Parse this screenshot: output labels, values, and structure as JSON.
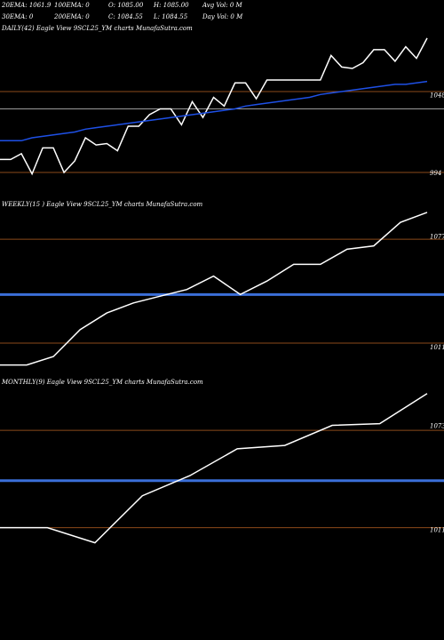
{
  "header": {
    "ema20": "20EMA: 1061.9",
    "ema100": "100EMA: 0",
    "open": "O: 1085.00",
    "high": "H: 1085.00",
    "avg_vol": "Avg Vol: 0  M",
    "ema30": "30EMA: 0",
    "ema200": "200EMA: 0",
    "close": "C: 1084.55",
    "low": "L: 1084.55",
    "day_vol": "Day Vol: 0  M"
  },
  "chart_data": [
    {
      "id": "daily",
      "type": "line",
      "title": "DAILY(42) Eagle  View  9SCL25_YM charts MunafaSutra.com",
      "ylim": [
        978,
        1090
      ],
      "ytick_labels": [
        {
          "value": 1048,
          "label": "1048"
        },
        {
          "value": 994,
          "label": "994"
        }
      ],
      "hlines": [
        {
          "y": 1050,
          "color": "#8b4a1a"
        },
        {
          "y": 1038,
          "color": "#9a9a9a"
        },
        {
          "y": 994,
          "color": "#8b4a1a"
        }
      ],
      "series": [
        {
          "color": "#ffffff",
          "values": [
            1003,
            1003,
            1007,
            993,
            1011,
            1011,
            994,
            1002,
            1018,
            1013,
            1014,
            1009,
            1026,
            1026,
            1034,
            1038,
            1038,
            1027,
            1043,
            1032,
            1046,
            1040,
            1056,
            1056,
            1045,
            1058,
            1058,
            1058,
            1058,
            1058,
            1058,
            1075,
            1067,
            1066,
            1070,
            1079,
            1079,
            1071,
            1081,
            1073,
            1087
          ]
        },
        {
          "color": "#1e50e6",
          "values": [
            1016,
            1016,
            1016,
            1018,
            1019,
            1020,
            1021,
            1022,
            1024,
            1025,
            1026,
            1027,
            1028,
            1029,
            1030,
            1031,
            1032,
            1033,
            1034,
            1035,
            1036,
            1037,
            1038,
            1040,
            1041,
            1042,
            1043,
            1044,
            1045,
            1046,
            1048,
            1049,
            1050,
            1051,
            1052,
            1053,
            1054,
            1055,
            1055,
            1056,
            1057
          ]
        }
      ]
    },
    {
      "id": "weekly",
      "type": "line",
      "title": "WEEKLY(15                         ) Eagle  View  9SCL25_YM charts MunafaSutra.com",
      "ylim": [
        995,
        1092
      ],
      "ytick_labels": [
        {
          "value": 1077,
          "label": "1077"
        },
        {
          "value": 1011,
          "label": "1011"
        }
      ],
      "hlines": [
        {
          "y": 1075,
          "color": "#8b4a1a"
        },
        {
          "y": 1042,
          "color": "#3b6fd8",
          "width": 3
        },
        {
          "y": 1013,
          "color": "#8b4a1a"
        }
      ],
      "series": [
        {
          "color": "#ffffff",
          "values": [
            1000,
            1000,
            1005,
            1021,
            1031,
            1037,
            1041,
            1045,
            1053,
            1042,
            1050,
            1060,
            1060,
            1069,
            1071,
            1085,
            1091
          ]
        }
      ]
    },
    {
      "id": "monthly",
      "type": "line",
      "title": "MONTHLY(9) Eagle  View  9SCL25_YM charts MunafaSutra.com",
      "ylim": [
        998,
        1095
      ],
      "ytick_labels": [
        {
          "value": 1073,
          "label": "1073"
        },
        {
          "value": 1011,
          "label": "1011"
        }
      ],
      "hlines": [
        {
          "y": 1070,
          "color": "#8b4a1a"
        },
        {
          "y": 1040,
          "color": "#3b6fd8",
          "width": 3
        },
        {
          "y": 1012,
          "color": "#8b4a1a"
        }
      ],
      "series": [
        {
          "color": "#ffffff",
          "values": [
            1012,
            1012,
            1003,
            1031,
            1043,
            1059,
            1061,
            1073,
            1074,
            1092
          ]
        }
      ]
    }
  ]
}
